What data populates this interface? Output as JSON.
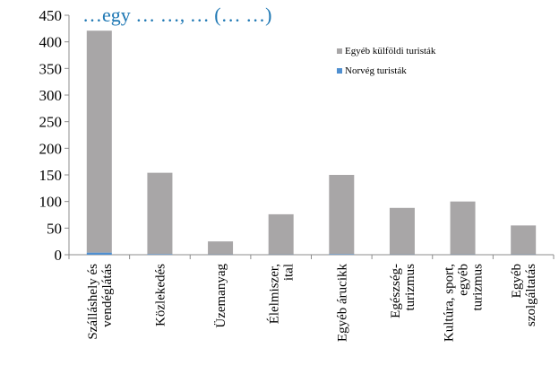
{
  "chart_data": {
    "type": "bar",
    "stacked": true,
    "title": "…egy … …, … (… …)",
    "title_color": "#1f78b4",
    "categories": [
      [
        "Szálláshely és",
        "vendéglátás"
      ],
      [
        "Közlekedés"
      ],
      [
        "Üzemanyag"
      ],
      [
        "Élelmiszer,",
        "ital"
      ],
      [
        "Egyéb árucikk"
      ],
      [
        "Egészség-",
        "turizmus"
      ],
      [
        "Kultúra, sport,",
        "egyéb",
        "turizmus"
      ],
      [
        "Egyéb",
        "szolgáltatás"
      ]
    ],
    "series": [
      {
        "name": "Norvég turisták",
        "color": "#4f8fd0",
        "values": [
          4,
          1,
          0.5,
          0.5,
          1,
          0.5,
          0.5,
          0.5
        ]
      },
      {
        "name": "Egyéb külföldi turisták",
        "color": "#a8a6a7",
        "values": [
          417,
          153,
          24.5,
          75.5,
          149,
          87.5,
          99.5,
          54.5
        ]
      }
    ],
    "ylim": [
      0,
      450
    ],
    "yticks": [
      0,
      50,
      100,
      150,
      200,
      250,
      300,
      350,
      400,
      450
    ],
    "legend_order": [
      "Egyéb külföldi turisták",
      "Norvég turisták"
    ],
    "legend_position": "upper-right",
    "grid": false,
    "xlabel": "",
    "ylabel": ""
  }
}
